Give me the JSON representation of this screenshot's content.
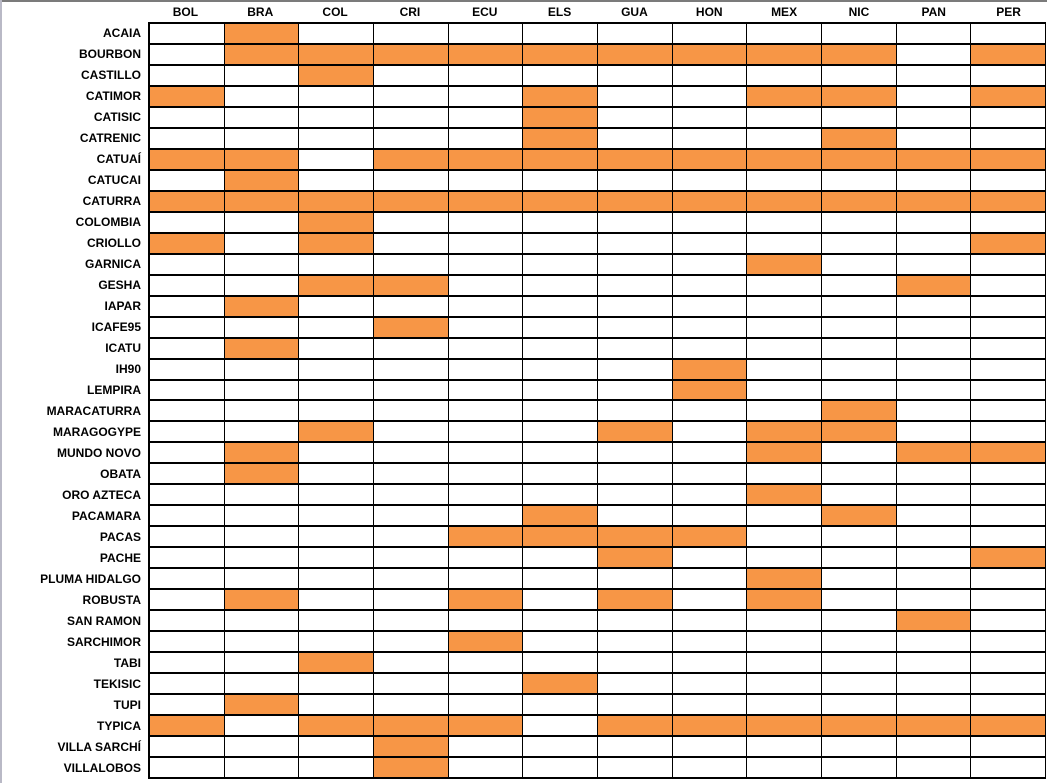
{
  "chart_data": {
    "type": "heatmap",
    "title": "",
    "legend_position": "none",
    "grid": true,
    "fill_color": "#F79646",
    "empty_color": "#FFFFFF",
    "grid_line_color": "#000000",
    "columns": [
      "BOL",
      "BRA",
      "COL",
      "CRI",
      "ECU",
      "ELS",
      "GUA",
      "HON",
      "MEX",
      "NIC",
      "PAN",
      "PER"
    ],
    "rows": [
      {
        "name": "ACAIA",
        "filled": [
          "BRA"
        ]
      },
      {
        "name": "BOURBON",
        "filled": [
          "BRA",
          "COL",
          "CRI",
          "ECU",
          "ELS",
          "GUA",
          "HON",
          "MEX",
          "NIC",
          "PER"
        ]
      },
      {
        "name": "CASTILLO",
        "filled": [
          "COL"
        ]
      },
      {
        "name": "CATIMOR",
        "filled": [
          "BOL",
          "ELS",
          "MEX",
          "NIC",
          "PER"
        ]
      },
      {
        "name": "CATISIC",
        "filled": [
          "ELS"
        ]
      },
      {
        "name": "CATRENIC",
        "filled": [
          "ELS",
          "NIC"
        ]
      },
      {
        "name": "CATUAÍ",
        "filled": [
          "BOL",
          "BRA",
          "CRI",
          "ECU",
          "ELS",
          "GUA",
          "HON",
          "MEX",
          "NIC",
          "PAN",
          "PER"
        ]
      },
      {
        "name": "CATUCAI",
        "filled": [
          "BRA"
        ]
      },
      {
        "name": "CATURRA",
        "filled": [
          "BOL",
          "BRA",
          "COL",
          "CRI",
          "ECU",
          "ELS",
          "GUA",
          "HON",
          "MEX",
          "NIC",
          "PAN",
          "PER"
        ]
      },
      {
        "name": "COLOMBIA",
        "filled": [
          "COL"
        ]
      },
      {
        "name": "CRIOLLO",
        "filled": [
          "BOL",
          "COL",
          "PER"
        ]
      },
      {
        "name": "GARNICA",
        "filled": [
          "MEX"
        ]
      },
      {
        "name": "GESHA",
        "filled": [
          "COL",
          "CRI",
          "PAN"
        ]
      },
      {
        "name": "IAPAR",
        "filled": [
          "BRA"
        ]
      },
      {
        "name": "ICAFE95",
        "filled": [
          "CRI"
        ]
      },
      {
        "name": "ICATU",
        "filled": [
          "BRA"
        ]
      },
      {
        "name": "IH90",
        "filled": [
          "HON"
        ]
      },
      {
        "name": "LEMPIRA",
        "filled": [
          "HON"
        ]
      },
      {
        "name": "MARACATURRA",
        "filled": [
          "NIC"
        ]
      },
      {
        "name": "MARAGOGYPE",
        "filled": [
          "COL",
          "GUA",
          "MEX",
          "NIC"
        ]
      },
      {
        "name": "MUNDO NOVO",
        "filled": [
          "BRA",
          "MEX",
          "PAN",
          "PER"
        ]
      },
      {
        "name": "OBATA",
        "filled": [
          "BRA"
        ]
      },
      {
        "name": "ORO AZTECA",
        "filled": [
          "MEX"
        ]
      },
      {
        "name": "PACAMARA",
        "filled": [
          "ELS",
          "NIC"
        ]
      },
      {
        "name": "PACAS",
        "filled": [
          "ECU",
          "ELS",
          "GUA",
          "HON"
        ]
      },
      {
        "name": "PACHE",
        "filled": [
          "GUA",
          "PER"
        ]
      },
      {
        "name": "PLUMA HIDALGO",
        "filled": [
          "MEX"
        ]
      },
      {
        "name": "ROBUSTA",
        "filled": [
          "BRA",
          "ECU",
          "GUA",
          "MEX"
        ]
      },
      {
        "name": "SAN RAMON",
        "filled": [
          "PAN"
        ]
      },
      {
        "name": "SARCHIMOR",
        "filled": [
          "ECU"
        ]
      },
      {
        "name": "TABI",
        "filled": [
          "COL"
        ]
      },
      {
        "name": "TEKISIC",
        "filled": [
          "ELS"
        ]
      },
      {
        "name": "TUPI",
        "filled": [
          "BRA"
        ]
      },
      {
        "name": "TYPICA",
        "filled": [
          "BOL",
          "COL",
          "CRI",
          "ECU",
          "GUA",
          "HON",
          "MEX",
          "NIC",
          "PAN",
          "PER"
        ]
      },
      {
        "name": "VILLA SARCHÍ",
        "filled": [
          "CRI"
        ]
      },
      {
        "name": "VILLALOBOS",
        "filled": [
          "CRI"
        ]
      }
    ]
  }
}
